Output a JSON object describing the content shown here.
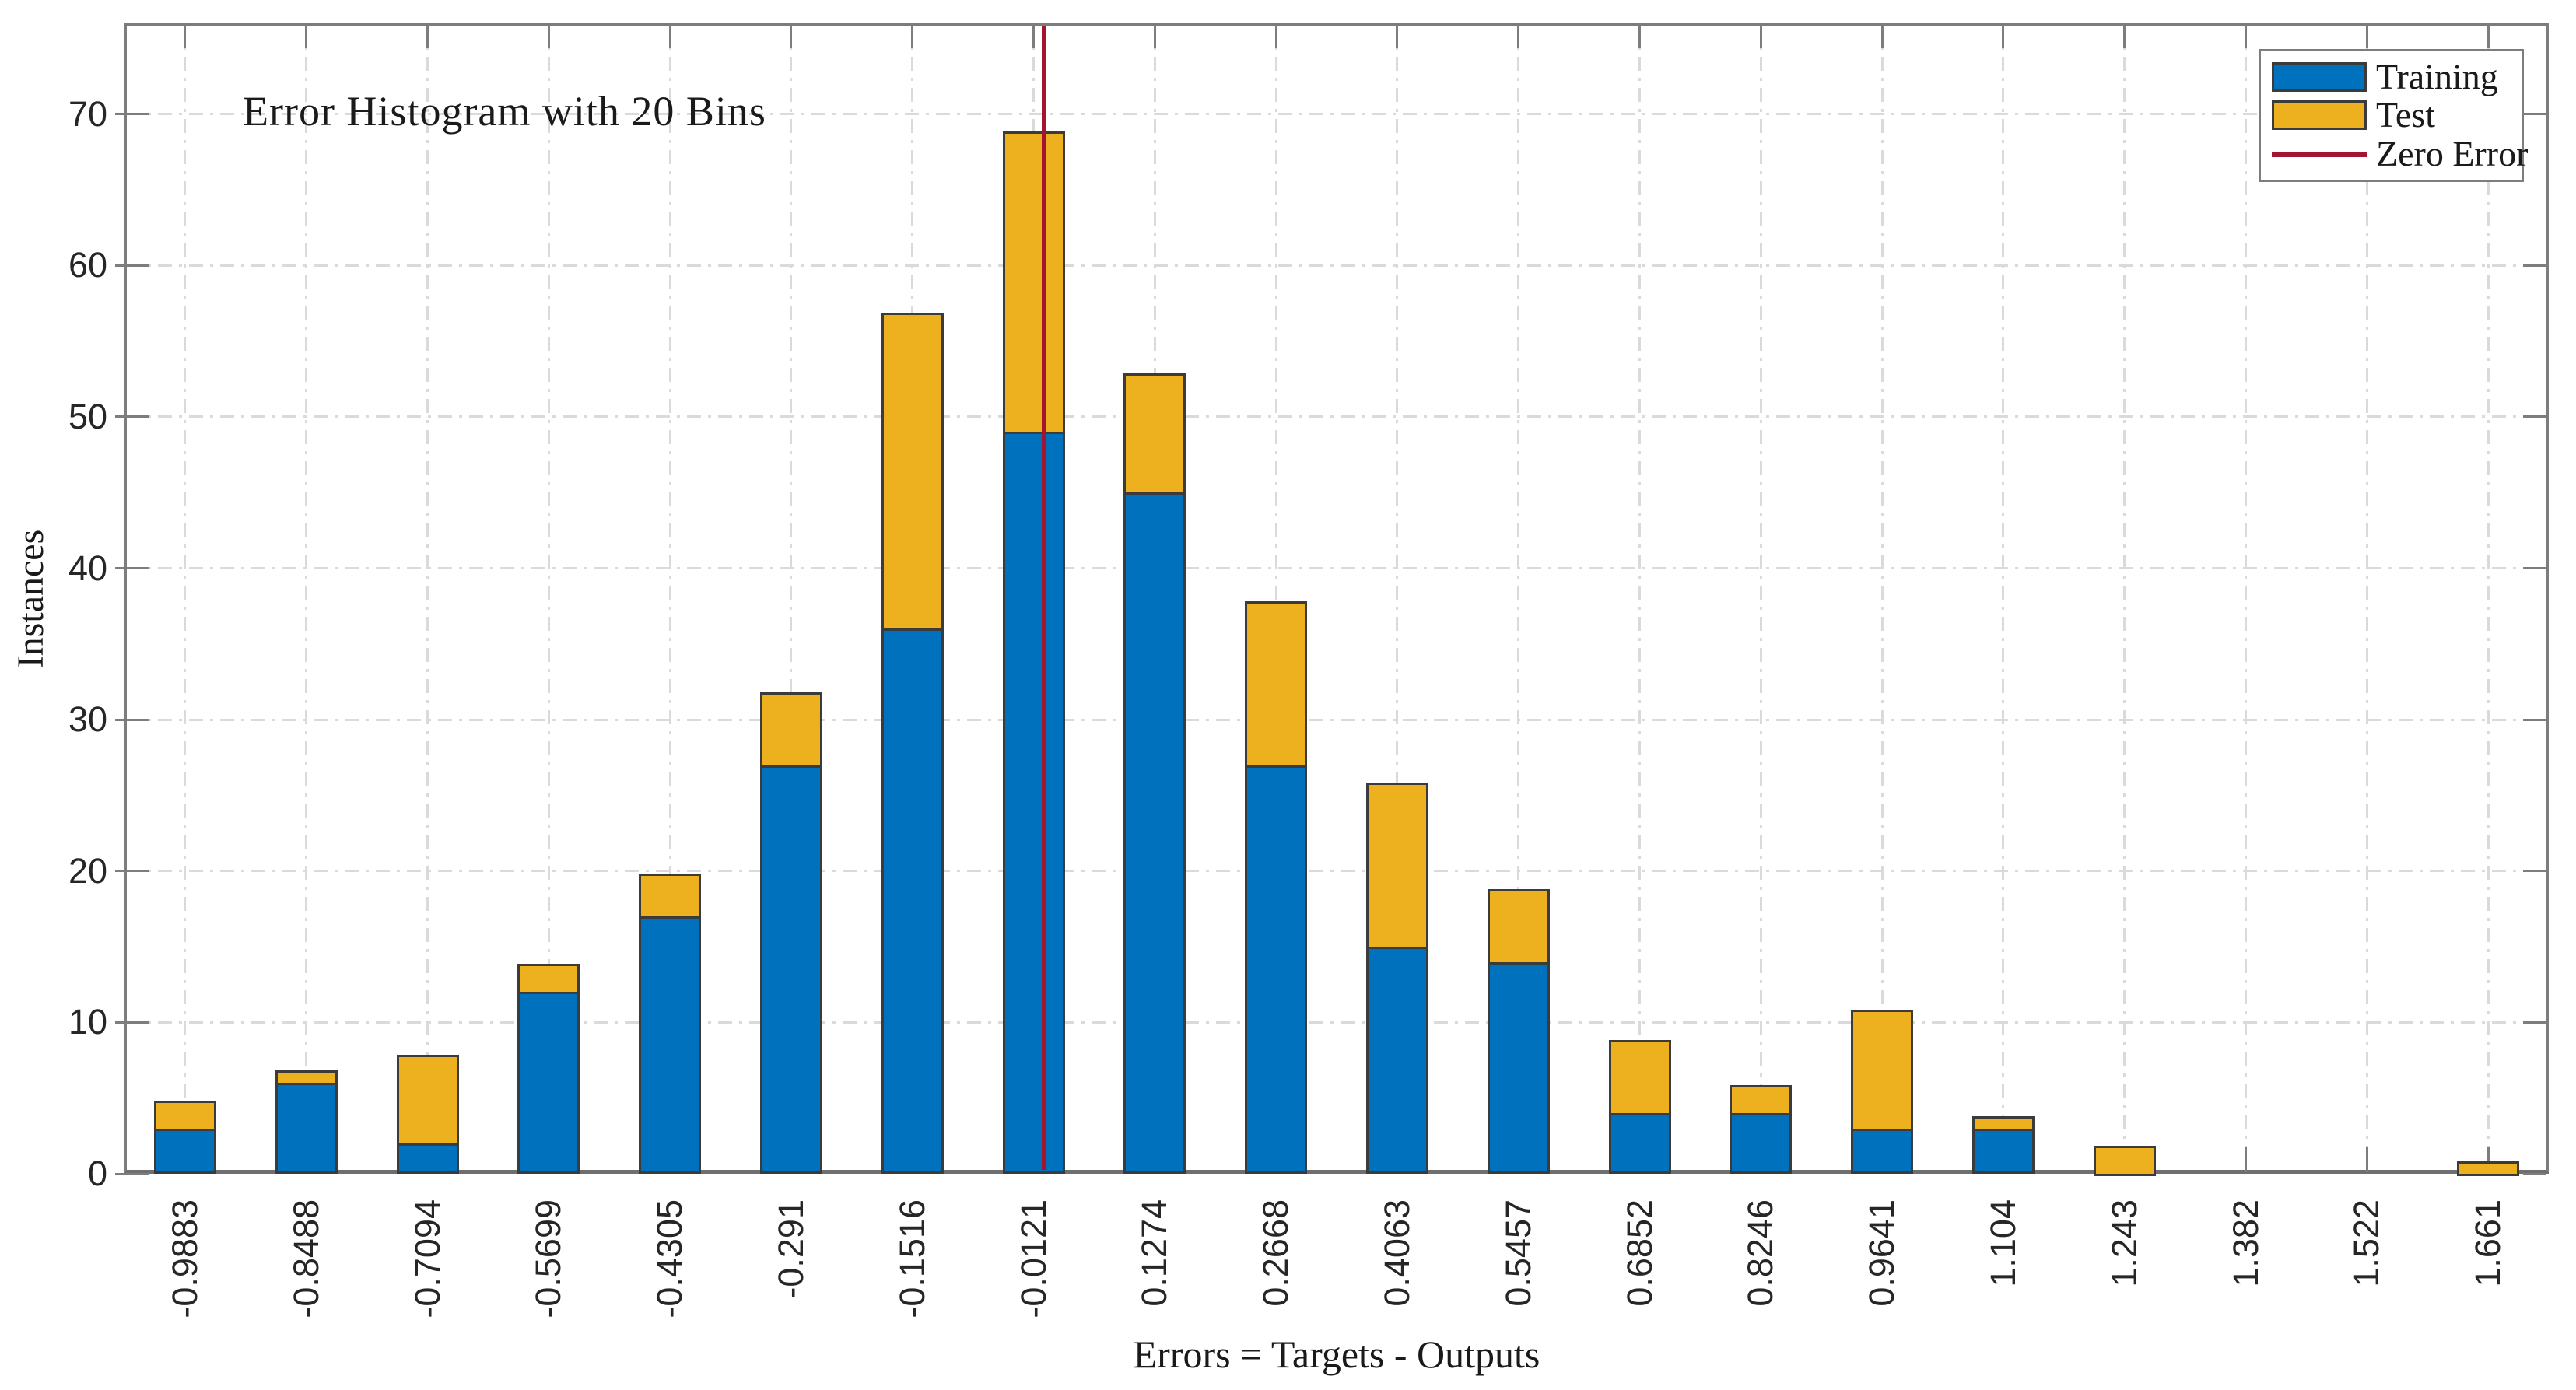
{
  "chart_data": {
    "type": "bar",
    "stacked": true,
    "title": "Error Histogram with 20 Bins",
    "xlabel": "Errors = Targets - Outputs",
    "ylabel": "Instances",
    "categories": [
      "-0.9883",
      "-0.8488",
      "-0.7094",
      "-0.5699",
      "-0.4305",
      "-0.291",
      "-0.1516",
      "-0.0121",
      "0.1274",
      "0.2668",
      "0.4063",
      "0.5457",
      "0.6852",
      "0.8246",
      "0.9641",
      "1.104",
      "1.243",
      "1.382",
      "1.522",
      "1.661"
    ],
    "series": [
      {
        "name": "Training",
        "color": "#0072BD",
        "values": [
          3,
          6,
          2,
          12,
          17,
          27,
          36,
          49,
          45,
          27,
          15,
          14,
          4,
          4,
          3,
          3,
          0,
          0,
          0,
          0
        ]
      },
      {
        "name": "Test",
        "color": "#EDB120",
        "values": [
          2,
          1,
          6,
          2,
          3,
          5,
          21,
          20,
          8,
          11,
          11,
          5,
          5,
          2,
          8,
          1,
          2,
          0,
          0,
          1
        ]
      }
    ],
    "totals": [
      5,
      7,
      8,
      14,
      20,
      32,
      57,
      69,
      53,
      38,
      26,
      19,
      9,
      6,
      11,
      4,
      2,
      0,
      0,
      1
    ],
    "zero_error": {
      "label": "Zero Error",
      "color": "#A2142F",
      "x_value": 0
    },
    "ylim": [
      0,
      76
    ],
    "yticks": [
      0,
      10,
      20,
      30,
      40,
      50,
      60,
      70
    ],
    "grid": true,
    "grid_style": "dash-dot",
    "legend_position": "top-right",
    "colors": {
      "bar_edge": "#3b3b3b",
      "axis": "#7d7d7d",
      "grid": "#dadada",
      "tick_text": "#262626"
    }
  }
}
